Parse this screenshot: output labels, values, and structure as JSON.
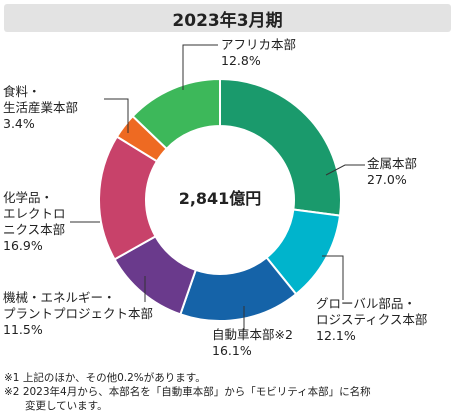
{
  "title": "2023年3月期",
  "chart_data": {
    "type": "pie",
    "style": "donut",
    "center_label": "2,841億円",
    "slices": [
      {
        "name": "金属本部",
        "label_lines": [
          "金属本部"
        ],
        "value": 27.0,
        "value_text": "27.0%",
        "color": "#1a9a6c"
      },
      {
        "name": "グローバル部品・ロジスティクス本部",
        "label_lines": [
          "グローバル部品・",
          "ロジスティクス本部"
        ],
        "value": 12.1,
        "value_text": "12.1%",
        "color": "#00b4cc"
      },
      {
        "name": "自動車本部※2",
        "label_lines": [
          "自動車本部※2"
        ],
        "value": 16.1,
        "value_text": "16.1%",
        "color": "#1563a8"
      },
      {
        "name": "機械・エネルギー・プラントプロジェクト本部",
        "label_lines": [
          "機械・エネルギー・",
          "プラントプロジェクト本部"
        ],
        "value": 11.5,
        "value_text": "11.5%",
        "color": "#6a3a8c"
      },
      {
        "name": "化学品・エレクトロニクス本部",
        "label_lines": [
          "化学品・",
          "エレクトロ",
          "ニクス本部"
        ],
        "value": 16.9,
        "value_text": "16.9%",
        "color": "#c8426a"
      },
      {
        "name": "食料・生活産業本部",
        "label_lines": [
          "食料・",
          "生活産業本部"
        ],
        "value": 3.4,
        "value_text": "3.4%",
        "color": "#ee6a22"
      },
      {
        "name": "アフリカ本部",
        "label_lines": [
          "アフリカ本部"
        ],
        "value": 12.8,
        "value_text": "12.8%",
        "color": "#3db85a"
      }
    ]
  },
  "notes": [
    "※1 上記のほか、その他0.2%があります。",
    "※2 2023年4月から、本部名を「自動車本部」から「モビリティ本部」に名称",
    "　　変更しています。"
  ]
}
